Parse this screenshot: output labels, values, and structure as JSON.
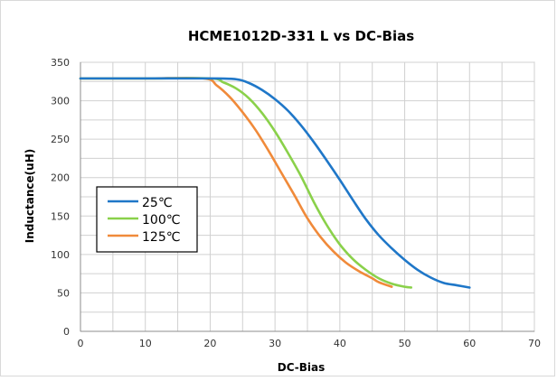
{
  "chart_data": {
    "type": "line",
    "title": "HCME1012D-331 L vs DC-Bias",
    "xlabel": "DC-Bias",
    "ylabel": "Inductance(uH)",
    "xlim": [
      0,
      70
    ],
    "ylim": [
      0,
      350
    ],
    "x_ticks": [
      "0",
      "10",
      "20",
      "30",
      "40",
      "50",
      "60",
      "70"
    ],
    "y_ticks": [
      "0",
      "50",
      "100",
      "150",
      "200",
      "250",
      "300",
      "350"
    ],
    "grid": true,
    "legend_position": "left-middle",
    "series": [
      {
        "name": "25℃",
        "color": "#1f77c8",
        "points": [
          [
            0,
            329
          ],
          [
            10,
            329
          ],
          [
            20,
            329
          ],
          [
            24,
            328
          ],
          [
            26,
            323
          ],
          [
            28,
            314
          ],
          [
            30,
            302
          ],
          [
            32,
            287
          ],
          [
            34,
            268
          ],
          [
            36,
            246
          ],
          [
            38,
            222
          ],
          [
            40,
            197
          ],
          [
            42,
            171
          ],
          [
            44,
            146
          ],
          [
            46,
            125
          ],
          [
            48,
            108
          ],
          [
            50,
            93
          ],
          [
            52,
            80
          ],
          [
            54,
            70
          ],
          [
            56,
            63
          ],
          [
            58,
            60
          ],
          [
            60,
            57
          ]
        ]
      },
      {
        "name": "100℃",
        "color": "#8ad14a",
        "points": [
          [
            0,
            329
          ],
          [
            10,
            329
          ],
          [
            20,
            329
          ],
          [
            22,
            324
          ],
          [
            24,
            316
          ],
          [
            26,
            303
          ],
          [
            28,
            284
          ],
          [
            30,
            260
          ],
          [
            32,
            232
          ],
          [
            34,
            202
          ],
          [
            36,
            168
          ],
          [
            38,
            138
          ],
          [
            40,
            113
          ],
          [
            42,
            94
          ],
          [
            44,
            80
          ],
          [
            46,
            69
          ],
          [
            48,
            62
          ],
          [
            50,
            58
          ],
          [
            51,
            57
          ]
        ]
      },
      {
        "name": "125℃",
        "color": "#f08a3a",
        "points": [
          [
            0,
            329
          ],
          [
            10,
            329
          ],
          [
            19,
            329
          ],
          [
            21,
            320
          ],
          [
            23,
            305
          ],
          [
            25,
            285
          ],
          [
            27,
            262
          ],
          [
            29,
            235
          ],
          [
            31,
            206
          ],
          [
            33,
            177
          ],
          [
            35,
            147
          ],
          [
            37,
            123
          ],
          [
            39,
            104
          ],
          [
            41,
            89
          ],
          [
            43,
            78
          ],
          [
            45,
            69
          ],
          [
            46,
            64
          ],
          [
            48,
            58
          ]
        ]
      }
    ]
  }
}
